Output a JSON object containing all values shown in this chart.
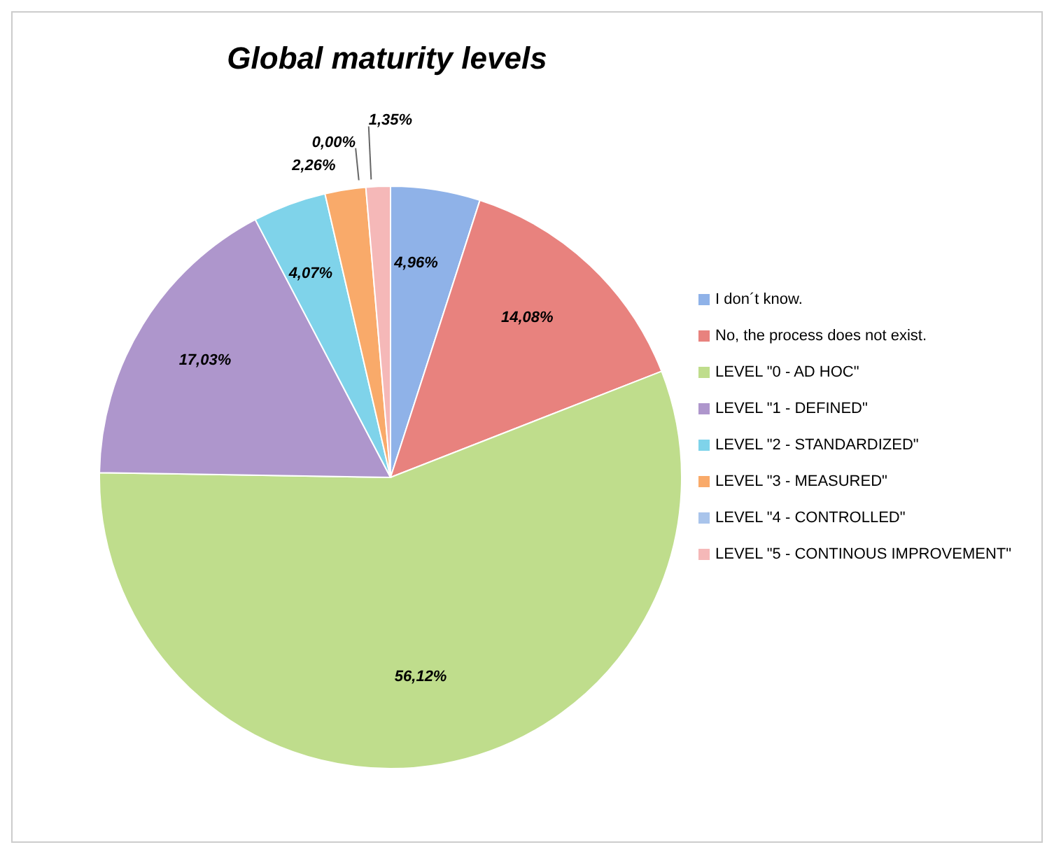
{
  "chart_data": {
    "type": "pie",
    "title": "Global maturity levels",
    "categories": [
      "I don´t know.",
      "No, the process does not exist.",
      "LEVEL \"0 - AD HOC\"",
      "LEVEL \"1 - DEFINED\"",
      "LEVEL \"2 - STANDARDIZED\"",
      "LEVEL \"3 - MEASURED\"",
      "LEVEL \"4 - CONTROLLED\"",
      "LEVEL \"5 - CONTINOUS IMPROVEMENT\""
    ],
    "values": [
      4.96,
      14.08,
      56.12,
      17.03,
      4.07,
      2.26,
      0.0,
      1.35
    ],
    "value_labels": [
      "4,96%",
      "14,08%",
      "56,12%",
      "17,03%",
      "4,07%",
      "2,26%",
      "0,00%",
      "1,35%"
    ],
    "colors": [
      "#8fb2e8",
      "#e8827e",
      "#bfdd8c",
      "#ae96cc",
      "#7fd3ea",
      "#f9aa6a",
      "#a9c4eb",
      "#f5b8b8"
    ],
    "legend": "right"
  }
}
